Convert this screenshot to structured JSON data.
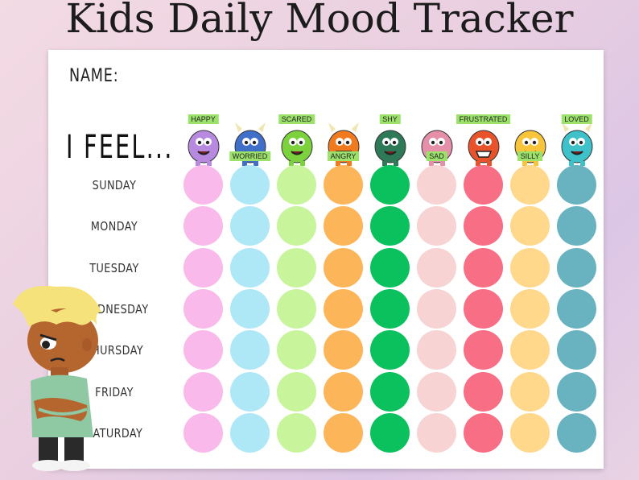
{
  "title": "Kids Daily Mood Tracker",
  "sheet": {
    "name_label": "NAME:",
    "feel_label": "I FEEL..."
  },
  "moods": [
    {
      "label": "Happy",
      "color": "#f9b9ea",
      "monster": "purple-fluffy-monster-icon",
      "label_pos": "top"
    },
    {
      "label": "Worried",
      "color": "#aee8f7",
      "monster": "blue-horned-monster-icon",
      "label_pos": "bottom"
    },
    {
      "label": "Scared",
      "color": "#c8f59b",
      "monster": "green-blob-monster-icon",
      "label_pos": "top"
    },
    {
      "label": "Angry",
      "color": "#fdb55a",
      "monster": "orange-angry-monster-icon",
      "label_pos": "bottom"
    },
    {
      "label": "Shy",
      "color": "#0ac15e",
      "monster": "green-spiky-monster-icon",
      "label_pos": "top"
    },
    {
      "label": "Sad",
      "color": "#f7d3d3",
      "monster": "pink-sad-monster-icon",
      "label_pos": "bottom"
    },
    {
      "label": "Frustrated",
      "color": "#f86e85",
      "monster": "red-frustrated-monster-icon",
      "label_pos": "top"
    },
    {
      "label": "Silly",
      "color": "#ffd88c",
      "monster": "yellow-silly-monster-icon",
      "label_pos": "bottom"
    },
    {
      "label": "Loved",
      "color": "#69b3c0",
      "monster": "teal-loving-monster-icon",
      "label_pos": "top"
    }
  ],
  "days": [
    "SUNDAY",
    "MONDAY",
    "TUESDAY",
    "WEDNESDAY",
    "THURSDAY",
    "FRIDAY",
    "SATURDAY"
  ],
  "illustration": "grumpy-boy-icon"
}
